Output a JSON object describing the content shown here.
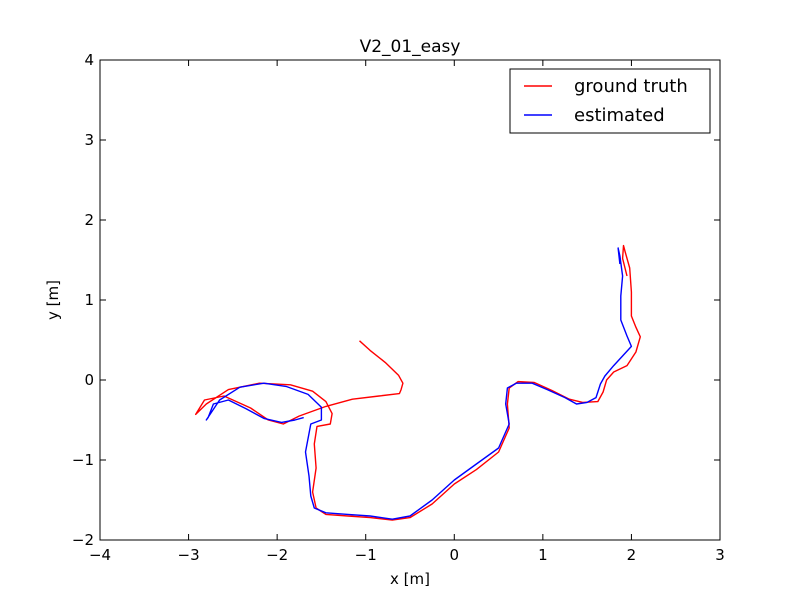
{
  "chart_data": {
    "type": "line",
    "title": "V2_01_easy",
    "xlabel": "x [m]",
    "ylabel": "y [m]",
    "xlim": [
      -4,
      3
    ],
    "ylim": [
      -2,
      4
    ],
    "xticks": [
      -4,
      -3,
      -2,
      -1,
      0,
      1,
      2,
      3
    ],
    "yticks": [
      -2,
      -1,
      0,
      1,
      2,
      3,
      4
    ],
    "xtick_labels": [
      "−4",
      "−3",
      "−2",
      "−1",
      "0",
      "1",
      "2",
      "3"
    ],
    "ytick_labels": [
      "−2",
      "−1",
      "0",
      "1",
      "2",
      "3",
      "4"
    ],
    "grid": false,
    "legend_position": "top-right",
    "series": [
      {
        "name": "ground truth",
        "color": "#ff0000",
        "points": [
          [
            -1.07,
            0.49
          ],
          [
            -0.95,
            0.37
          ],
          [
            -0.78,
            0.22
          ],
          [
            -0.63,
            0.06
          ],
          [
            -0.58,
            -0.04
          ],
          [
            -0.6,
            -0.12
          ],
          [
            -0.62,
            -0.17
          ],
          [
            -0.85,
            -0.2
          ],
          [
            -1.15,
            -0.24
          ],
          [
            -1.45,
            -0.33
          ],
          [
            -1.75,
            -0.45
          ],
          [
            -1.93,
            -0.55
          ],
          [
            -2.1,
            -0.5
          ],
          [
            -2.3,
            -0.35
          ],
          [
            -2.6,
            -0.2
          ],
          [
            -2.82,
            -0.25
          ],
          [
            -2.92,
            -0.43
          ],
          [
            -2.8,
            -0.3
          ],
          [
            -2.55,
            -0.12
          ],
          [
            -2.2,
            -0.04
          ],
          [
            -1.85,
            -0.06
          ],
          [
            -1.6,
            -0.14
          ],
          [
            -1.45,
            -0.27
          ],
          [
            -1.38,
            -0.42
          ],
          [
            -1.4,
            -0.55
          ],
          [
            -1.55,
            -0.58
          ],
          [
            -1.58,
            -0.8
          ],
          [
            -1.56,
            -1.1
          ],
          [
            -1.6,
            -1.4
          ],
          [
            -1.56,
            -1.6
          ],
          [
            -1.45,
            -1.68
          ],
          [
            -1.2,
            -1.7
          ],
          [
            -0.95,
            -1.72
          ],
          [
            -0.7,
            -1.75
          ],
          [
            -0.5,
            -1.72
          ],
          [
            -0.25,
            -1.55
          ],
          [
            0.0,
            -1.3
          ],
          [
            0.25,
            -1.12
          ],
          [
            0.5,
            -0.9
          ],
          [
            0.62,
            -0.6
          ],
          [
            0.6,
            -0.3
          ],
          [
            0.62,
            -0.1
          ],
          [
            0.72,
            -0.02
          ],
          [
            0.9,
            -0.03
          ],
          [
            1.1,
            -0.13
          ],
          [
            1.3,
            -0.24
          ],
          [
            1.45,
            -0.28
          ],
          [
            1.62,
            -0.27
          ],
          [
            1.68,
            -0.15
          ],
          [
            1.72,
            0.0
          ],
          [
            1.8,
            0.1
          ],
          [
            1.95,
            0.18
          ],
          [
            2.05,
            0.35
          ],
          [
            2.1,
            0.54
          ],
          [
            2.05,
            0.66
          ],
          [
            2.0,
            0.8
          ],
          [
            2.0,
            1.1
          ],
          [
            1.98,
            1.4
          ],
          [
            1.93,
            1.6
          ],
          [
            1.91,
            1.68
          ],
          [
            1.9,
            1.52
          ],
          [
            1.95,
            1.3
          ]
        ]
      },
      {
        "name": "estimated",
        "color": "#0000ff",
        "points": [
          [
            -1.7,
            -0.47
          ],
          [
            -1.8,
            -0.5
          ],
          [
            -1.95,
            -0.53
          ],
          [
            -2.15,
            -0.48
          ],
          [
            -2.35,
            -0.36
          ],
          [
            -2.55,
            -0.25
          ],
          [
            -2.72,
            -0.3
          ],
          [
            -2.78,
            -0.47
          ],
          [
            -2.8,
            -0.5
          ],
          [
            -2.65,
            -0.25
          ],
          [
            -2.42,
            -0.09
          ],
          [
            -2.15,
            -0.04
          ],
          [
            -1.9,
            -0.08
          ],
          [
            -1.65,
            -0.18
          ],
          [
            -1.5,
            -0.34
          ],
          [
            -1.5,
            -0.5
          ],
          [
            -1.62,
            -0.55
          ],
          [
            -1.68,
            -0.9
          ],
          [
            -1.64,
            -1.2
          ],
          [
            -1.62,
            -1.45
          ],
          [
            -1.58,
            -1.6
          ],
          [
            -1.45,
            -1.66
          ],
          [
            -1.2,
            -1.68
          ],
          [
            -0.95,
            -1.7
          ],
          [
            -0.7,
            -1.74
          ],
          [
            -0.5,
            -1.7
          ],
          [
            -0.25,
            -1.5
          ],
          [
            0.0,
            -1.25
          ],
          [
            0.25,
            -1.05
          ],
          [
            0.5,
            -0.85
          ],
          [
            0.62,
            -0.55
          ],
          [
            0.58,
            -0.3
          ],
          [
            0.6,
            -0.1
          ],
          [
            0.7,
            -0.04
          ],
          [
            0.88,
            -0.04
          ],
          [
            1.05,
            -0.12
          ],
          [
            1.25,
            -0.22
          ],
          [
            1.38,
            -0.3
          ],
          [
            1.5,
            -0.28
          ],
          [
            1.6,
            -0.22
          ],
          [
            1.65,
            -0.05
          ],
          [
            1.7,
            0.05
          ],
          [
            1.8,
            0.18
          ],
          [
            2.0,
            0.42
          ],
          [
            1.95,
            0.55
          ],
          [
            1.88,
            0.75
          ],
          [
            1.88,
            1.05
          ],
          [
            1.9,
            1.3
          ],
          [
            1.87,
            1.55
          ],
          [
            1.85,
            1.65
          ],
          [
            1.87,
            1.45
          ]
        ]
      }
    ]
  }
}
